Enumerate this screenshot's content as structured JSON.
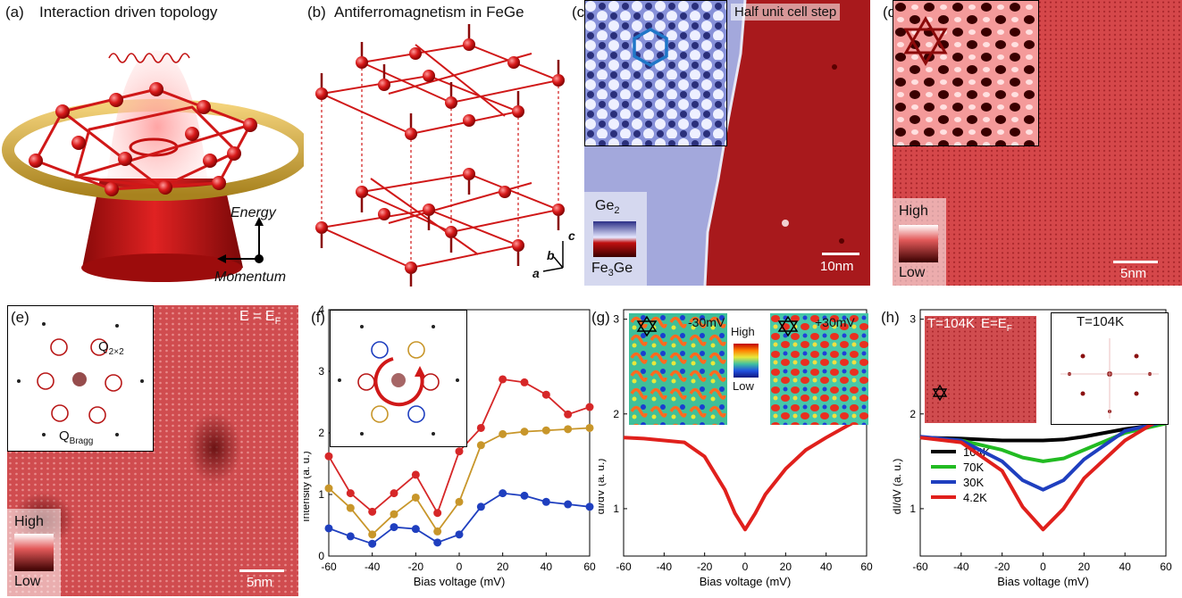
{
  "panels": {
    "a": {
      "label": "(a)",
      "title": "Interaction driven topology",
      "energy": "Energy",
      "momentum": "Momentum"
    },
    "b": {
      "label": "(b)",
      "title": "Antiferromagnetism in FeGe",
      "axis_a": "a",
      "axis_b": "b",
      "axis_c": "c"
    },
    "c": {
      "label": "(c)",
      "step": "Half unit cell step",
      "cb_top": "Ge",
      "cb_top_sub": "2",
      "cb_bottom": "Fe",
      "cb_bottom_sub": "3",
      "cb_bottom_tail": "Ge",
      "scale": "10nm"
    },
    "d": {
      "label": "(d)",
      "cb_high": "High",
      "cb_low": "Low",
      "scale": "5nm"
    },
    "e": {
      "label": "(e)",
      "energy": "E = E",
      "energy_sub": "F",
      "q22": "Q",
      "q22_sub": "2×2",
      "qbragg": "Q",
      "qbragg_sub": "Bragg",
      "cb_high": "High",
      "cb_low": "Low",
      "scale": "5nm"
    },
    "f": {
      "label": "(f)"
    },
    "g": {
      "label": "(g)",
      "inset_left": "-30mV",
      "inset_right": "+30mV",
      "cb_high": "High",
      "cb_low": "Low"
    },
    "h": {
      "label": "(h)",
      "inset_left_temp": "T=104K",
      "inset_left_energy": "E=E",
      "inset_left_energy_sub": "F",
      "inset_right_temp": "T=104K"
    }
  },
  "chart_data": [
    {
      "type": "line",
      "panel": "f",
      "xlabel": "Bias voltage (mV)",
      "ylabel": "Intensity (a. u.)",
      "xlim": [
        -60,
        60
      ],
      "ylim": [
        0,
        4
      ],
      "xticks": [
        "-60",
        "-40",
        "-20",
        "0",
        "20",
        "40",
        "60"
      ],
      "yticks": [
        "0",
        "1",
        "2",
        "3",
        "4"
      ],
      "x": [
        -60,
        -50,
        -40,
        -30,
        -20,
        -10,
        0,
        10,
        20,
        30,
        40,
        50,
        60
      ],
      "series": [
        {
          "color": "#d62728",
          "values": [
            1.62,
            1.02,
            0.72,
            1.02,
            1.32,
            0.7,
            1.7,
            2.08,
            2.87,
            2.82,
            2.62,
            2.3,
            2.42
          ]
        },
        {
          "color": "#c8962a",
          "values": [
            1.1,
            0.78,
            0.35,
            0.68,
            0.95,
            0.4,
            0.88,
            1.8,
            1.98,
            2.02,
            2.04,
            2.06,
            2.08
          ]
        },
        {
          "color": "#1f3fbf",
          "values": [
            0.45,
            0.32,
            0.2,
            0.47,
            0.44,
            0.22,
            0.35,
            0.8,
            1.02,
            0.98,
            0.88,
            0.84,
            0.8
          ]
        }
      ]
    },
    {
      "type": "line",
      "panel": "g",
      "xlabel": "Bias voltage (mV)",
      "ylabel": "dI/dV (a. u.)",
      "xlim": [
        -60,
        60
      ],
      "ylim": [
        0.5,
        3.1
      ],
      "xticks": [
        "-60",
        "-40",
        "-20",
        "0",
        "20",
        "40",
        "60"
      ],
      "yticks": [
        "1",
        "2",
        "3"
      ],
      "x": [
        -60,
        -50,
        -40,
        -30,
        -20,
        -10,
        -5,
        0,
        5,
        10,
        20,
        30,
        40,
        50,
        60
      ],
      "series": [
        {
          "color": "#e0201c",
          "values": [
            1.75,
            1.74,
            1.72,
            1.7,
            1.55,
            1.2,
            0.95,
            0.78,
            0.95,
            1.15,
            1.42,
            1.62,
            1.75,
            1.87,
            1.98
          ]
        }
      ]
    },
    {
      "type": "line",
      "panel": "h",
      "xlabel": "Bias voltage (mV)",
      "ylabel": "dI/dV (a. u.)",
      "xlim": [
        -60,
        60
      ],
      "ylim": [
        0.5,
        3.1
      ],
      "xticks": [
        "-60",
        "-40",
        "-20",
        "0",
        "20",
        "40",
        "60"
      ],
      "yticks": [
        "1",
        "2",
        "3"
      ],
      "x": [
        -60,
        -40,
        -20,
        -10,
        0,
        10,
        20,
        40,
        60
      ],
      "series": [
        {
          "name": "104K",
          "color": "#000000",
          "values": [
            1.75,
            1.74,
            1.72,
            1.72,
            1.72,
            1.73,
            1.76,
            1.84,
            1.9
          ]
        },
        {
          "name": "70K",
          "color": "#22bb22",
          "values": [
            1.75,
            1.72,
            1.62,
            1.54,
            1.5,
            1.53,
            1.62,
            1.8,
            1.9
          ]
        },
        {
          "name": "30K",
          "color": "#1f3fbf",
          "values": [
            1.76,
            1.72,
            1.5,
            1.3,
            1.2,
            1.3,
            1.52,
            1.82,
            1.92
          ]
        },
        {
          "name": "4.2K",
          "color": "#e0201c",
          "values": [
            1.75,
            1.7,
            1.4,
            1.02,
            0.78,
            1.0,
            1.32,
            1.72,
            1.98
          ]
        }
      ]
    }
  ]
}
